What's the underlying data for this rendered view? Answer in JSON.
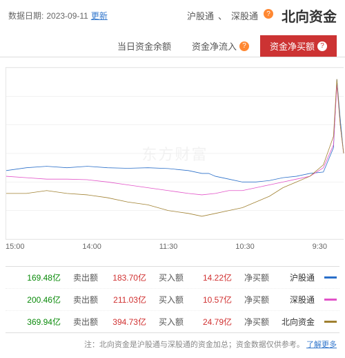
{
  "header": {
    "date_label": "数据日期:",
    "date_value": "2023-09-11",
    "update_link": "更新",
    "main_title": "北向资金",
    "sub1": "沪股通",
    "sub_sep": "、",
    "sub2": "深股通"
  },
  "tabs": {
    "t1": "资金净买额",
    "t2": "资金净流入",
    "t3": "当日资金余额"
  },
  "chart": {
    "ylim": [
      -30,
      30
    ],
    "yticks": [
      30,
      20,
      10,
      0,
      -10,
      -20,
      -30
    ],
    "xticks": [
      "15:00",
      "14:00",
      "11:30",
      "10:30",
      "9:30"
    ],
    "grid_color": "#eeeeee",
    "bg": "#ffffff",
    "watermark": "东方财富",
    "series": [
      {
        "name": "sh",
        "color": "#2a6fc9",
        "points": [
          [
            0,
            -6
          ],
          [
            6,
            -5
          ],
          [
            12,
            -4.5
          ],
          [
            18,
            -5
          ],
          [
            24,
            -4.5
          ],
          [
            30,
            -5
          ],
          [
            36,
            -5.2
          ],
          [
            42,
            -5
          ],
          [
            48,
            -5.3
          ],
          [
            54,
            -6
          ],
          [
            58,
            -7
          ],
          [
            60,
            -7
          ],
          [
            62,
            -8
          ],
          [
            66,
            -9
          ],
          [
            70,
            -10
          ],
          [
            74,
            -10
          ],
          [
            78,
            -9.5
          ],
          [
            82,
            -8.5
          ],
          [
            86,
            -8
          ],
          [
            90,
            -7
          ],
          [
            94,
            -6.5
          ],
          [
            97,
            2
          ],
          [
            98,
            26
          ],
          [
            99,
            12
          ],
          [
            100,
            0
          ]
        ]
      },
      {
        "name": "sz",
        "color": "#e252c8",
        "points": [
          [
            0,
            -8
          ],
          [
            6,
            -8.5
          ],
          [
            12,
            -9
          ],
          [
            18,
            -9
          ],
          [
            24,
            -9.2
          ],
          [
            30,
            -10
          ],
          [
            36,
            -11
          ],
          [
            42,
            -12
          ],
          [
            48,
            -13
          ],
          [
            54,
            -14
          ],
          [
            58,
            -14.5
          ],
          [
            62,
            -14
          ],
          [
            66,
            -13
          ],
          [
            70,
            -13
          ],
          [
            74,
            -12
          ],
          [
            78,
            -11
          ],
          [
            82,
            -10
          ],
          [
            86,
            -9
          ],
          [
            90,
            -8
          ],
          [
            94,
            -5
          ],
          [
            97,
            3
          ],
          [
            98,
            24
          ],
          [
            99,
            10
          ],
          [
            100,
            0
          ]
        ]
      },
      {
        "name": "north",
        "color": "#a08030",
        "points": [
          [
            0,
            -14
          ],
          [
            6,
            -14
          ],
          [
            12,
            -13
          ],
          [
            18,
            -14
          ],
          [
            24,
            -14.5
          ],
          [
            30,
            -15.5
          ],
          [
            36,
            -17
          ],
          [
            42,
            -18
          ],
          [
            48,
            -20
          ],
          [
            54,
            -21
          ],
          [
            58,
            -22
          ],
          [
            62,
            -21
          ],
          [
            66,
            -20
          ],
          [
            70,
            -19
          ],
          [
            74,
            -17
          ],
          [
            78,
            -15
          ],
          [
            82,
            -12
          ],
          [
            86,
            -10
          ],
          [
            90,
            -8
          ],
          [
            94,
            -4
          ],
          [
            97,
            6
          ],
          [
            98,
            26
          ],
          [
            99,
            10
          ],
          [
            100,
            0
          ]
        ]
      }
    ]
  },
  "legend": {
    "rows": [
      {
        "name": "沪股通",
        "color": "#2a6fc9",
        "nb_lbl": "净买额",
        "nb": "14.22亿",
        "in_lbl": "买入额",
        "in": "183.70亿",
        "out_lbl": "卖出额",
        "out": "169.48亿"
      },
      {
        "name": "深股通",
        "color": "#e252c8",
        "nb_lbl": "净买额",
        "nb": "10.57亿",
        "in_lbl": "买入额",
        "in": "211.03亿",
        "out_lbl": "卖出额",
        "out": "200.46亿"
      },
      {
        "name": "北向资金",
        "color": "#a08030",
        "nb_lbl": "净买额",
        "nb": "24.79亿",
        "in_lbl": "买入额",
        "in": "394.73亿",
        "out_lbl": "卖出额",
        "out": "369.94亿"
      }
    ]
  },
  "footnote": {
    "text": "注：北向资金是沪股通与深股通的资金加总；资金数据仅供参考。",
    "link": "了解更多"
  }
}
